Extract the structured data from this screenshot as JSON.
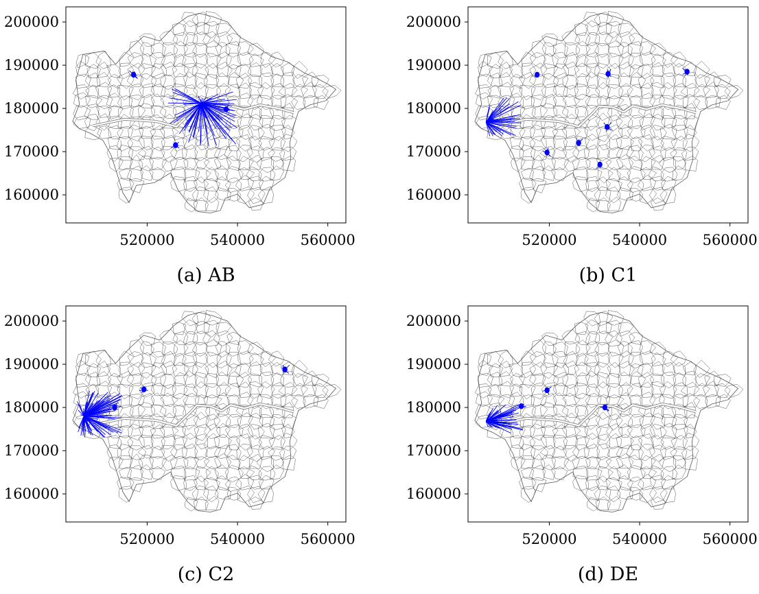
{
  "figure": {
    "panels": [
      {
        "id": "a",
        "caption": "(a) AB"
      },
      {
        "id": "b",
        "caption": "(b) C1"
      },
      {
        "id": "c",
        "caption": "(c) C2"
      },
      {
        "id": "d",
        "caption": "(d) DE"
      }
    ]
  },
  "colors": {
    "flow": "#0000ff",
    "boundary": "#000000",
    "frame": "#000000",
    "background": "#ffffff"
  },
  "chart_data": [
    {
      "type": "scatter",
      "caption": "(a) AB",
      "xlim": [
        502000,
        564000
      ],
      "ylim": [
        153500,
        203500
      ],
      "xticks": [
        520000,
        540000,
        560000
      ],
      "yticks": [
        160000,
        170000,
        180000,
        190000,
        200000
      ],
      "grid": false,
      "hub": {
        "x": 532000,
        "y": 181200
      },
      "flows": {
        "count": 80,
        "spread_x": [
          -7500,
          8000
        ],
        "spread_y": [
          -10000,
          3500
        ]
      },
      "clusters": [
        {
          "x": 517000,
          "y": 187800
        },
        {
          "x": 526300,
          "y": 171500
        },
        {
          "x": 537500,
          "y": 179800
        }
      ]
    },
    {
      "type": "scatter",
      "caption": "(b) C1",
      "xlim": [
        502000,
        564000
      ],
      "ylim": [
        153500,
        203500
      ],
      "xticks": [
        520000,
        540000,
        560000
      ],
      "yticks": [
        160000,
        170000,
        180000,
        190000,
        200000
      ],
      "grid": false,
      "hub": {
        "x": 506000,
        "y": 176800
      },
      "flows": {
        "count": 40,
        "spread_x": [
          0,
          8000
        ],
        "spread_y": [
          -3500,
          6000
        ]
      },
      "clusters": [
        {
          "x": 517300,
          "y": 187800
        },
        {
          "x": 526500,
          "y": 172000
        },
        {
          "x": 519500,
          "y": 169800
        },
        {
          "x": 532800,
          "y": 175700
        },
        {
          "x": 531200,
          "y": 167000
        },
        {
          "x": 533000,
          "y": 188000
        },
        {
          "x": 550500,
          "y": 188500
        }
      ]
    },
    {
      "type": "scatter",
      "caption": "(c) C2",
      "xlim": [
        502000,
        564000
      ],
      "ylim": [
        153500,
        203500
      ],
      "xticks": [
        520000,
        540000,
        560000
      ],
      "yticks": [
        160000,
        170000,
        180000,
        190000,
        200000
      ],
      "grid": false,
      "hub": {
        "x": 506000,
        "y": 178000
      },
      "flows": {
        "count": 90,
        "spread_x": [
          -1500,
          8500
        ],
        "spread_y": [
          -5000,
          6000
        ]
      },
      "clusters": [
        {
          "x": 519300,
          "y": 184200
        },
        {
          "x": 512800,
          "y": 180000
        },
        {
          "x": 550500,
          "y": 188800
        }
      ]
    },
    {
      "type": "scatter",
      "caption": "(d) DE",
      "xlim": [
        502000,
        564000
      ],
      "ylim": [
        153500,
        203500
      ],
      "xticks": [
        520000,
        540000,
        560000
      ],
      "yticks": [
        160000,
        170000,
        180000,
        190000,
        200000
      ],
      "grid": false,
      "hub": {
        "x": 506000,
        "y": 176800
      },
      "flows": {
        "count": 55,
        "spread_x": [
          0,
          8500
        ],
        "spread_y": [
          -3000,
          4000
        ]
      },
      "clusters": [
        {
          "x": 519500,
          "y": 184000
        },
        {
          "x": 513800,
          "y": 180300
        },
        {
          "x": 532300,
          "y": 180000
        }
      ]
    }
  ]
}
